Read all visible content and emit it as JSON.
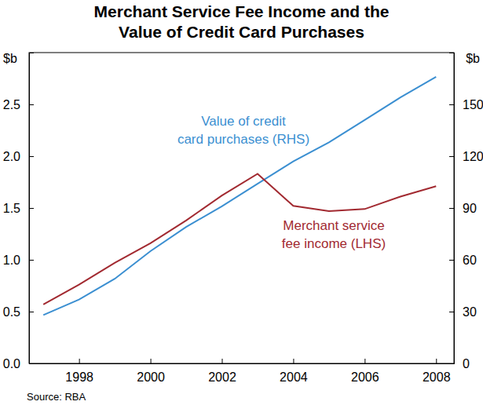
{
  "chart_data": {
    "type": "line",
    "title": [
      "Merchant Service Fee Income and the",
      "Value of Credit Card Purchases"
    ],
    "ylabel": "$b",
    "y2label": "$b",
    "source": "Source: RBA",
    "x": [
      1997,
      1998,
      1999,
      2000,
      2001,
      2002,
      2003,
      2004,
      2005,
      2006,
      2007,
      2008
    ],
    "xlim": [
      1996.6,
      2008.5
    ],
    "xticks": [
      1998,
      2000,
      2002,
      2004,
      2006,
      2008
    ],
    "ylim": [
      0,
      3
    ],
    "yticks": [
      {
        "value": 0,
        "label": "0.0"
      },
      0.5,
      {
        "value": 1,
        "label": "1.0"
      },
      1.5,
      {
        "value": 2,
        "label": "2.0"
      },
      2.5
    ],
    "y2lim": [
      0,
      180
    ],
    "y2ticks": [
      0,
      30,
      60,
      90,
      120,
      150
    ],
    "grid": false,
    "series": [
      {
        "name": "Value of credit card purchases (RHS)",
        "color": "#3b8fd1",
        "axis": "y2",
        "values": [
          28,
          37,
          49,
          65,
          79,
          91,
          104,
          117,
          128,
          141,
          154,
          166
        ]
      },
      {
        "name": "Merchant service fee income (LHS)",
        "color": "#a22a31",
        "axis": "y",
        "values": [
          0.57,
          0.76,
          0.97,
          1.16,
          1.38,
          1.62,
          1.83,
          1.52,
          1.47,
          1.49,
          1.61,
          1.71
        ]
      }
    ]
  }
}
